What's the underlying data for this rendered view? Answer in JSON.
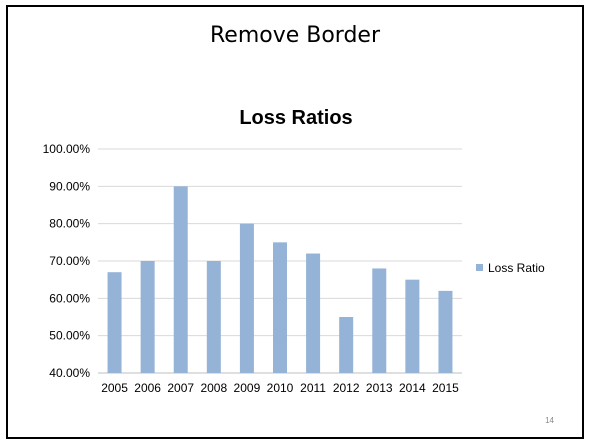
{
  "slide": {
    "title": "Remove Border",
    "page_number": "14"
  },
  "colors": {
    "bar": "#95b3d7",
    "grid": "#d9d9d9",
    "axis": "#bfbfbf"
  },
  "chart_data": {
    "type": "bar",
    "title": "Loss Ratios",
    "xlabel": "",
    "ylabel": "",
    "categories": [
      "2005",
      "2006",
      "2007",
      "2008",
      "2009",
      "2010",
      "2011",
      "2012",
      "2013",
      "2014",
      "2015"
    ],
    "series": [
      {
        "name": "Loss Ratio",
        "values": [
          67,
          70,
          90,
          70,
          80,
          75,
          72,
          55,
          68,
          65,
          62
        ]
      }
    ],
    "ylim": [
      40,
      100
    ],
    "y_ticks": [
      "40.00%",
      "50.00%",
      "60.00%",
      "70.00%",
      "80.00%",
      "90.00%",
      "100.00%"
    ],
    "grid": true,
    "legend_position": "right"
  }
}
